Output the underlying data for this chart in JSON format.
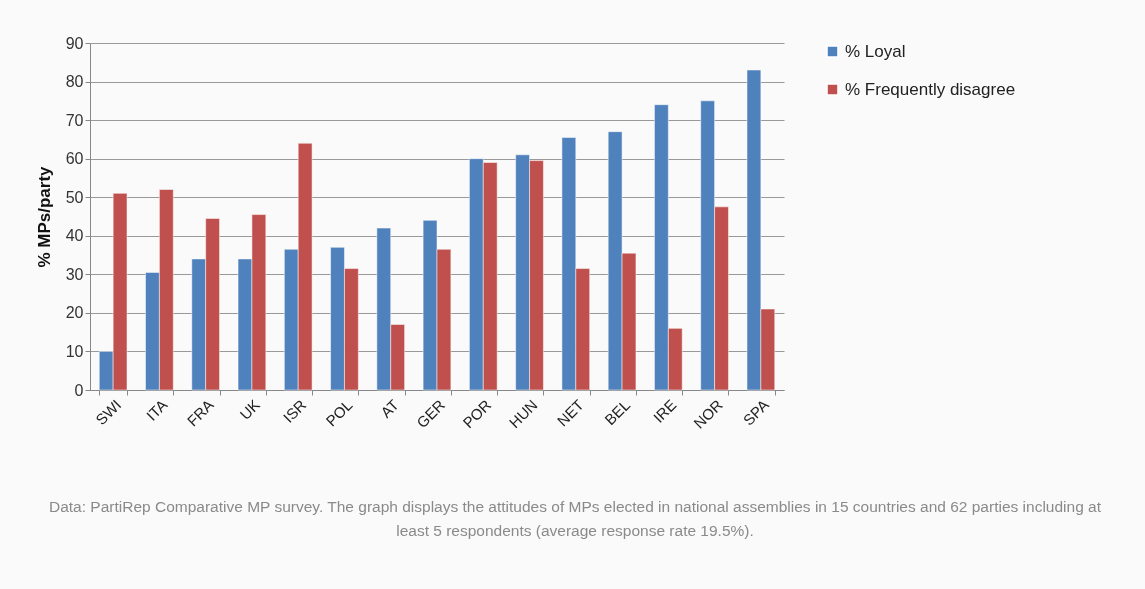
{
  "chart_data": {
    "type": "bar",
    "ylabel": "% MPs/party",
    "categories": [
      "SWI",
      "ITA",
      "FRA",
      "UK",
      "ISR",
      "POL",
      "AT",
      "GER",
      "POR",
      "HUN",
      "NET",
      "BEL",
      "IRE",
      "NOR",
      "SPA"
    ],
    "series": [
      {
        "name": "% Loyal",
        "color": "#4f81bd",
        "values": [
          10,
          30.5,
          34,
          34,
          36.5,
          37,
          42,
          44,
          60,
          61,
          65.5,
          67,
          74,
          75,
          83
        ]
      },
      {
        "name": "% Frequently disagree",
        "color": "#c0504d",
        "values": [
          51,
          52,
          44.5,
          45.5,
          64,
          31.5,
          17,
          36.5,
          59,
          59.5,
          31.5,
          35.5,
          16,
          47.5,
          21
        ]
      }
    ],
    "ylim": [
      0,
      90
    ],
    "yticks": [
      0,
      10,
      20,
      30,
      40,
      50,
      60,
      70,
      80,
      90
    ],
    "grid": "y",
    "legend": "right",
    "annotations": [
      "Data: PartiRep Comparative MP survey. The graph displays the attitudes of MPs elected in national assemblies in 15 countries and 62 parties including at least 5 respondents (average response rate 19.5%)."
    ]
  }
}
